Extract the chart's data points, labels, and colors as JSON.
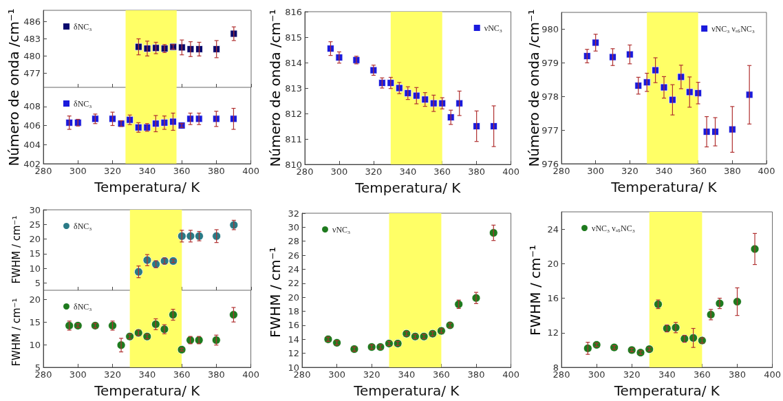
{
  "chart_data": [
    {
      "type": "scatter",
      "marker": "square",
      "legend": "top left",
      "tick_labels": "y",
      "x": [
        335,
        340,
        345,
        350,
        355,
        360,
        365,
        370,
        380,
        390
      ],
      "xlim": [
        280,
        400
      ],
      "xticks": [
        280,
        300,
        320,
        340,
        360,
        380,
        400
      ],
      "ylim": [
        474.5,
        488
      ],
      "yticks": [
        477,
        480,
        483,
        486
      ],
      "grid": false,
      "bands": [
        {
          "axis": "x",
          "from": 327.5,
          "to": 357,
          "color": "#ffff66"
        }
      ],
      "series": [
        {
          "name": "δNC₃",
          "color": "#0a0a6e",
          "values": [
            481.6,
            481.3,
            481.4,
            481.3,
            481.6,
            481.5,
            481.2,
            481.2,
            481.2,
            483.9
          ],
          "errors": [
            1.4,
            1.3,
            1.0,
            0.7,
            0.4,
            1.3,
            1.3,
            1.2,
            1.5,
            1.2
          ]
        }
      ]
    },
    {
      "type": "scatter",
      "marker": "square",
      "legend": "top left",
      "x": [
        295,
        300,
        310,
        320,
        325,
        330,
        335,
        340,
        345,
        350,
        355,
        360,
        365,
        370,
        380,
        390
      ],
      "xlim": [
        280,
        400
      ],
      "xticks": [
        280,
        300,
        320,
        340,
        360,
        380,
        400
      ],
      "ylim": [
        402,
        410
      ],
      "yticks": [
        402,
        404,
        406,
        408
      ],
      "grid": false,
      "xlabel": "Temperatura/ K",
      "ylabel": "Número de onda /cm⁻¹",
      "bands": [
        {
          "axis": "x",
          "from": 327.5,
          "to": 357,
          "color": "#ffff66"
        }
      ],
      "series": [
        {
          "name": "δNC₃",
          "color": "#1a1adc",
          "values": [
            406.3,
            406.3,
            406.7,
            406.7,
            406.2,
            406.6,
            405.8,
            405.8,
            406.2,
            406.3,
            406.4,
            406.0,
            406.7,
            406.7,
            406.7,
            406.7
          ],
          "errors": [
            0.7,
            0.35,
            0.5,
            0.7,
            0.3,
            0.5,
            0.5,
            0.4,
            0.85,
            0.7,
            0.9,
            0.2,
            0.6,
            0.6,
            0.8,
            1.1
          ]
        }
      ]
    },
    {
      "type": "scatter",
      "marker": "square",
      "legend": "top right",
      "x": [
        295,
        300,
        310,
        320,
        325,
        330,
        335,
        340,
        345,
        350,
        355,
        360,
        365,
        370,
        380,
        390
      ],
      "xlim": [
        280,
        400
      ],
      "xticks": [
        280,
        300,
        320,
        340,
        360,
        380,
        400
      ],
      "ylim": [
        810,
        816
      ],
      "yticks": [
        810,
        811,
        812,
        813,
        814,
        815,
        816
      ],
      "grid": false,
      "xlabel": "Temperatura/ K",
      "ylabel": "Número de onda /cm⁻¹",
      "bands": [
        {
          "axis": "x",
          "from": 330,
          "to": 360,
          "color": "#ffff66"
        }
      ],
      "series": [
        {
          "name": "νNC₃",
          "color": "#1a1adc",
          "values": [
            814.55,
            814.2,
            814.1,
            813.7,
            813.2,
            813.2,
            813.0,
            812.8,
            812.7,
            812.55,
            812.4,
            812.4,
            811.85,
            812.4,
            811.5,
            811.5
          ],
          "errors": [
            0.27,
            0.22,
            0.15,
            0.2,
            0.2,
            0.22,
            0.22,
            0.25,
            0.32,
            0.27,
            0.32,
            0.22,
            0.28,
            0.48,
            0.6,
            0.8
          ]
        }
      ]
    },
    {
      "type": "scatter",
      "marker": "square",
      "legend": "top right",
      "x": [
        295,
        300,
        310,
        320,
        325,
        330,
        335,
        340,
        345,
        350,
        355,
        360,
        365,
        370,
        380,
        390
      ],
      "xlim": [
        280,
        400
      ],
      "xticks": [
        280,
        300,
        320,
        340,
        360,
        380,
        400
      ],
      "ylim": [
        976,
        980.5
      ],
      "yticks": [
        976,
        977,
        978,
        979,
        980
      ],
      "grid": false,
      "xlabel": "Temperatura/ K",
      "ylabel": "Número de onda /cm⁻¹",
      "bands": [
        {
          "axis": "x",
          "from": 330,
          "to": 360,
          "color": "#ffff66"
        }
      ],
      "series": [
        {
          "name": "νNC₃ νₐₛNC₃",
          "color": "#1a1adc",
          "values": [
            979.2,
            979.6,
            979.17,
            979.25,
            978.32,
            978.42,
            978.78,
            978.27,
            977.9,
            978.58,
            978.13,
            978.1,
            976.95,
            976.95,
            977.02,
            978.05
          ],
          "errors": [
            0.2,
            0.25,
            0.25,
            0.28,
            0.25,
            0.27,
            0.37,
            0.32,
            0.45,
            0.35,
            0.45,
            0.32,
            0.45,
            0.42,
            0.68,
            0.87
          ]
        }
      ]
    },
    {
      "type": "scatter",
      "marker": "circle",
      "legend": "top left",
      "tick_labels": "y",
      "x": [
        335,
        340,
        345,
        350,
        355,
        360,
        365,
        370,
        380,
        390
      ],
      "xlim": [
        280,
        400
      ],
      "xticks": [
        280,
        300,
        320,
        340,
        360,
        380,
        400
      ],
      "ylim": [
        2.5,
        30
      ],
      "yticks": [
        5,
        10,
        15,
        20,
        25,
        30
      ],
      "grid": false,
      "ylabel": "FWHM / cm⁻¹",
      "bands": [
        {
          "axis": "x",
          "from": 330,
          "to": 360,
          "color": "#ffff66"
        }
      ],
      "series": [
        {
          "name": "δNC₃",
          "color": "#2a7a86",
          "values": [
            8.8,
            12.8,
            11.4,
            12.5,
            12.5,
            21,
            21,
            21,
            21,
            24.8
          ],
          "errors": [
            2,
            1.9,
            1.2,
            1,
            0.5,
            2,
            2,
            1.6,
            2.2,
            1.6
          ]
        }
      ]
    },
    {
      "type": "scatter",
      "marker": "circle",
      "legend": "top left",
      "x": [
        295,
        300,
        310,
        320,
        325,
        330,
        335,
        340,
        345,
        350,
        355,
        360,
        365,
        370,
        380,
        390
      ],
      "xlim": [
        280,
        400
      ],
      "xticks": [
        280,
        300,
        320,
        340,
        360,
        380,
        400
      ],
      "ylim": [
        5,
        22
      ],
      "yticks": [
        5,
        10,
        15,
        20
      ],
      "grid": false,
      "xlabel": "Temperatura/ K",
      "ylabel": "FWHM / cm⁻¹",
      "bands": [
        {
          "axis": "x",
          "from": 330,
          "to": 360,
          "color": "#ffff66"
        }
      ],
      "series": [
        {
          "name": "δNC₃",
          "color": "#1e7a1e",
          "values": [
            14.2,
            14.2,
            14.2,
            14.2,
            9.9,
            11.8,
            12.6,
            11.8,
            14.5,
            13.4,
            16.6,
            8.9,
            11,
            11,
            11,
            16.6
          ],
          "errors": [
            1,
            0.4,
            0.5,
            1,
            1.5,
            0.5,
            0.6,
            0.5,
            1.2,
            1,
            1.2,
            0.3,
            0.8,
            0.8,
            1.1,
            1.6
          ]
        }
      ]
    },
    {
      "type": "scatter",
      "marker": "circle",
      "legend": "top left",
      "x": [
        295,
        300,
        310,
        320,
        325,
        330,
        335,
        340,
        345,
        350,
        355,
        360,
        365,
        370,
        380,
        390
      ],
      "xlim": [
        280,
        400
      ],
      "xticks": [
        280,
        300,
        320,
        340,
        360,
        380,
        400
      ],
      "ylim": [
        10,
        32
      ],
      "yticks": [
        10,
        12,
        14,
        16,
        18,
        20,
        22,
        24,
        26,
        28,
        30,
        32
      ],
      "grid": false,
      "xlabel": "Temperatura/ K",
      "ylabel": "FWHM / cm⁻¹",
      "bands": [
        {
          "axis": "x",
          "from": 330,
          "to": 360,
          "color": "#ffff66"
        }
      ],
      "series": [
        {
          "name": "νNC₃",
          "color": "#1e7a1e",
          "values": [
            14,
            13.5,
            12.6,
            12.9,
            12.9,
            13.4,
            13.4,
            14.8,
            14.4,
            14.4,
            14.8,
            15.2,
            16,
            19,
            19.9,
            29.2
          ],
          "errors": [
            0.3,
            0.3,
            0.3,
            0.3,
            0.3,
            0.3,
            0.3,
            0.3,
            0.3,
            0.3,
            0.3,
            0.3,
            0.3,
            0.6,
            0.8,
            1.1
          ]
        }
      ]
    },
    {
      "type": "scatter",
      "marker": "circle",
      "legend": "top left",
      "x": [
        295,
        300,
        310,
        320,
        325,
        330,
        335,
        340,
        345,
        350,
        355,
        360,
        365,
        370,
        380,
        390
      ],
      "xlim": [
        280,
        400
      ],
      "xticks": [
        280,
        300,
        320,
        340,
        360,
        380,
        400
      ],
      "ylim": [
        8,
        26
      ],
      "yticks": [
        8,
        12,
        16,
        20,
        24
      ],
      "grid": false,
      "xlabel": "Temperatura/ K",
      "ylabel": "FWHM / cm⁻¹",
      "bands": [
        {
          "axis": "x",
          "from": 330,
          "to": 360,
          "color": "#ffff66"
        }
      ],
      "series": [
        {
          "name": "νNC₃ νₐₛNC₃",
          "color": "#1e7a1e",
          "values": [
            10.2,
            10.6,
            10.3,
            10,
            9.7,
            10.1,
            15.3,
            12.5,
            12.6,
            11.3,
            11.4,
            11.1,
            14.1,
            15.4,
            15.6,
            21.7
          ],
          "errors": [
            0.7,
            0.2,
            0.2,
            0.2,
            0.2,
            0.2,
            0.5,
            0.4,
            0.6,
            0.4,
            1.1,
            0.3,
            0.6,
            0.6,
            1.6,
            1.8
          ]
        }
      ]
    }
  ]
}
